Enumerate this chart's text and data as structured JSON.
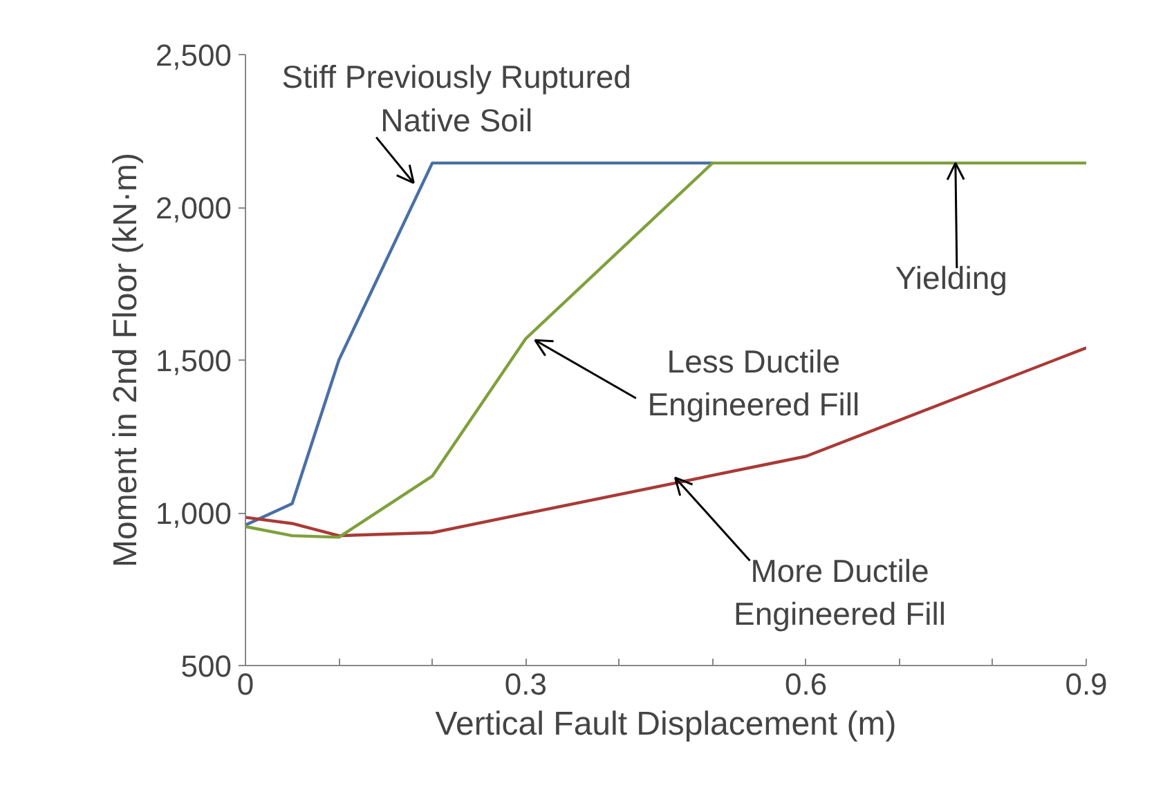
{
  "chart_data": {
    "type": "line",
    "xlabel": "Vertical Fault Displacement (m)",
    "ylabel": "Moment in 2nd Floor (kN·m)",
    "xlim": [
      0,
      0.9
    ],
    "ylim": [
      500,
      2500
    ],
    "xticks": [
      0,
      {
        "value": 0.1,
        "label": null
      },
      {
        "value": 0.2,
        "label": null
      },
      0.3,
      {
        "value": 0.4,
        "label": null
      },
      {
        "value": 0.5,
        "label": null
      },
      0.6,
      {
        "value": 0.7,
        "label": null
      },
      {
        "value": 0.8,
        "label": null
      },
      0.9
    ],
    "yticks": [
      500,
      {
        "value": 1000,
        "label": "1,000"
      },
      {
        "value": 1500,
        "label": "1,500"
      },
      {
        "value": 2000,
        "label": "2,000"
      },
      {
        "value": 2500,
        "label": "2,500"
      }
    ],
    "grid": false,
    "marker": "none",
    "line_style": "solid",
    "series": [
      {
        "color": "#4a6fa5",
        "x": [
          0,
          0.05,
          0.1,
          0.2,
          0.5
        ],
        "values": [
          960,
          1030,
          1500,
          2145,
          2145
        ]
      },
      {
        "color": "#a93a36",
        "x": [
          0,
          0.05,
          0.1,
          0.2,
          0.6,
          0.9
        ],
        "values": [
          985,
          965,
          925,
          935,
          1185,
          1540
        ]
      },
      {
        "color": "#7fa03c",
        "x": [
          0,
          0.05,
          0.1,
          0.2,
          0.3,
          0.5,
          0.9
        ],
        "values": [
          955,
          925,
          920,
          1120,
          1570,
          2145,
          2145
        ]
      }
    ],
    "annotations": [
      {
        "text": "Stiff Previously Ruptured\nNative Soil",
        "x": 0.18,
        "y": 2080
      },
      {
        "text": "Yielding",
        "x": 0.76,
        "y": 2145
      },
      {
        "text": "Less Ductile\nEngineered Fill",
        "x": 0.31,
        "y": 1565
      },
      {
        "text": "More Ductile\nEngineered Fill",
        "x": 0.46,
        "y": 1115
      }
    ]
  }
}
